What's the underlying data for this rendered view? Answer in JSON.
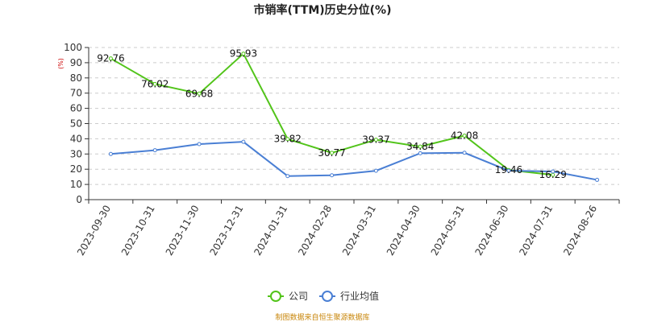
{
  "title": "市销率(TTM)历史分位(%)",
  "y_unit": "(%)",
  "source": "制图数据来自恒生聚源数据库",
  "legend": [
    {
      "label": "公司",
      "color": "#52c41a"
    },
    {
      "label": "行业均值",
      "color": "#4a7fd4"
    }
  ],
  "chart_data": {
    "type": "line",
    "title": "市销率(TTM)历史分位(%)",
    "ylabel": "(%)",
    "xlabel": "",
    "ylim": [
      0,
      100
    ],
    "yticks": [
      0,
      10,
      20,
      30,
      40,
      50,
      60,
      70,
      80,
      90,
      100
    ],
    "grid": true,
    "legend_position": "bottom",
    "x": [
      "2023-09-30",
      "2023-10-31",
      "2023-11-30",
      "2023-12-31",
      "2024-01-31",
      "2024-02-28",
      "2024-03-31",
      "2024-04-30",
      "2024-05-31",
      "2024-06-30",
      "2024-07-31",
      "2024-08-26"
    ],
    "series": [
      {
        "name": "公司",
        "color": "#52c41a",
        "values": [
          92.76,
          76.02,
          69.68,
          95.93,
          39.82,
          30.77,
          39.37,
          34.84,
          42.08,
          19.46,
          16.29,
          null
        ],
        "labels": [
          "92.76",
          "76.02",
          "69.68",
          "95.93",
          "39.82",
          "30.77",
          "39.37",
          "34.84",
          "42.08",
          "19.46",
          "16.29",
          ""
        ]
      },
      {
        "name": "行业均值",
        "color": "#4a7fd4",
        "values": [
          30.0,
          32.5,
          36.5,
          38.0,
          15.5,
          16.0,
          19.0,
          30.5,
          30.8,
          19.0,
          18.5,
          13.0
        ]
      }
    ]
  }
}
